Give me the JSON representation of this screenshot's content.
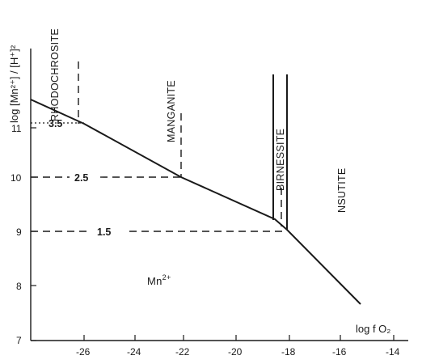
{
  "axes": {
    "ylabel": "log [Mn²⁺] / [H⁺]²",
    "xlabel": "log f O₂",
    "x_ticks": [
      "-26",
      "-24",
      "-22",
      "-20",
      "-18",
      "-16",
      "-14"
    ],
    "y_ticks": [
      "7",
      "8",
      "9",
      "10",
      "11"
    ]
  },
  "fields": {
    "rhodochrosite": "RHODOCHROSITE",
    "manganite": "MANGANITE",
    "birnessite": "BIRNESSITE",
    "nsutite": "NSUTITE",
    "mn2": "Mn",
    "mn2_charge": "2+"
  },
  "contours": {
    "high": "3.5",
    "mid": "2.5",
    "low": "1.5"
  }
}
